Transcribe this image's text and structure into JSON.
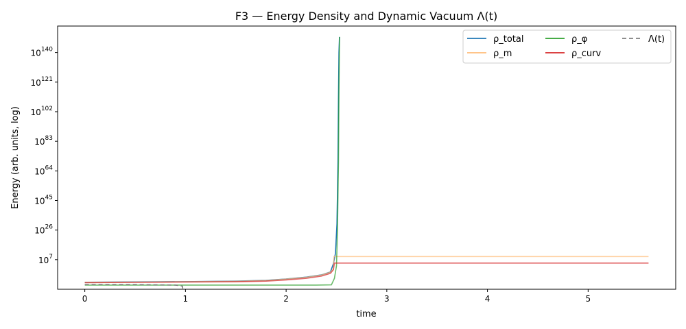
{
  "chart_data": {
    "type": "line",
    "title": "F3 — Energy Density and Dynamic Vacuum Λ(t)",
    "xlabel": "time",
    "ylabel": "Energy (arb. units, log)",
    "yscale": "log",
    "xlim": [
      -0.27,
      5.87
    ],
    "ylim_log10": [
      -12,
      157
    ],
    "xticks": [
      0,
      1,
      2,
      3,
      4,
      5
    ],
    "yticks_log10": [
      7,
      26,
      45,
      64,
      83,
      102,
      121,
      140
    ],
    "grid": false,
    "legend": {
      "placement": "top-right",
      "columns": 3
    },
    "series": [
      {
        "name": "ρ_total",
        "color": "#1f77b4",
        "x": [
          0,
          0.5,
          1.0,
          1.5,
          1.8,
          2.0,
          2.2,
          2.35,
          2.44,
          2.47,
          2.49,
          2.505,
          2.515,
          2.52,
          2.525,
          2.53
        ],
        "y_log10": [
          -7.5,
          -7.3,
          -7.1,
          -6.8,
          -6.3,
          -5.4,
          -4.2,
          -2.8,
          -0.9,
          4.5,
          11,
          30,
          70,
          110,
          140,
          150
        ]
      },
      {
        "name": "ρ_m",
        "color": "#ffbb78",
        "x": [
          0,
          0.5,
          1.0,
          1.5,
          1.8,
          2.0,
          2.2,
          2.35,
          2.44,
          2.47,
          2.475,
          5.6
        ],
        "y_log10": [
          -7.6,
          -7.4,
          -7.2,
          -6.9,
          -6.4,
          -5.5,
          -4.3,
          -2.9,
          -1.0,
          1.0,
          9.0,
          9.0
        ]
      },
      {
        "name": "ρ_φ",
        "color": "#2ca02c",
        "x": [
          0,
          0.5,
          1.0,
          1.5,
          2.0,
          2.3,
          2.45,
          2.48,
          2.5,
          2.51,
          2.52,
          2.525,
          2.53
        ],
        "y_log10": [
          -9.3,
          -9.3,
          -9.3,
          -9.3,
          -9.3,
          -9.3,
          -9.2,
          -5,
          3,
          25,
          70,
          115,
          150
        ]
      },
      {
        "name": "ρ_curv",
        "color": "#d62728",
        "x": [
          0,
          0.5,
          1.0,
          1.5,
          1.8,
          2.0,
          2.2,
          2.35,
          2.44,
          2.47,
          2.48,
          5.6
        ],
        "y_log10": [
          -7.8,
          -7.6,
          -7.4,
          -7.2,
          -6.8,
          -6.0,
          -5.0,
          -3.6,
          -1.8,
          0.6,
          4.8,
          4.8
        ]
      },
      {
        "name": "Λ(t)",
        "color": "#7f7f7f",
        "x": [
          0,
          0.5,
          0.9,
          0.97,
          0.975,
          0.98
        ],
        "y_log10": [
          -9.0,
          -9.0,
          -9.3,
          -10.0,
          -13,
          -20
        ]
      }
    ]
  }
}
